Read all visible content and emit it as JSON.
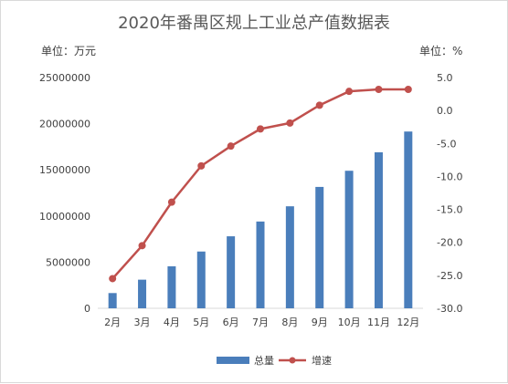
{
  "title": "2020年番禺区规上工业总产值数据表",
  "left_unit": "单位：万元",
  "right_unit": "单位：%",
  "chart_data": {
    "type": "bar+line",
    "title": "2020年番禺区规上工业总产值数据表",
    "categories": [
      "2月",
      "3月",
      "4月",
      "5月",
      "6月",
      "7月",
      "8月",
      "9月",
      "10月",
      "11月",
      "12月"
    ],
    "series": [
      {
        "name": "总量",
        "type": "bar",
        "axis": "left",
        "color": "#4a7ebb",
        "values": [
          1650000,
          3100000,
          4550000,
          6150000,
          7800000,
          9400000,
          11050000,
          13150000,
          14900000,
          16900000,
          19150000
        ]
      },
      {
        "name": "增速",
        "type": "line",
        "axis": "right",
        "color": "#c0504d",
        "values": [
          -25.5,
          -20.5,
          -13.9,
          -8.4,
          -5.4,
          -2.8,
          -1.9,
          0.8,
          2.9,
          3.2,
          3.2
        ]
      }
    ],
    "y_left": {
      "min": 0,
      "max": 25000000,
      "step": 5000000,
      "ticks": [
        "0",
        "5000000",
        "10000000",
        "15000000",
        "20000000",
        "25000000"
      ]
    },
    "y_right": {
      "min": -30,
      "max": 5,
      "step": 5,
      "ticks": [
        "5.0",
        "0.0",
        "-5.0",
        "-10.0",
        "-15.0",
        "-20.0",
        "-25.0",
        "-30.0"
      ]
    },
    "legend_position": "bottom",
    "grid": false
  }
}
